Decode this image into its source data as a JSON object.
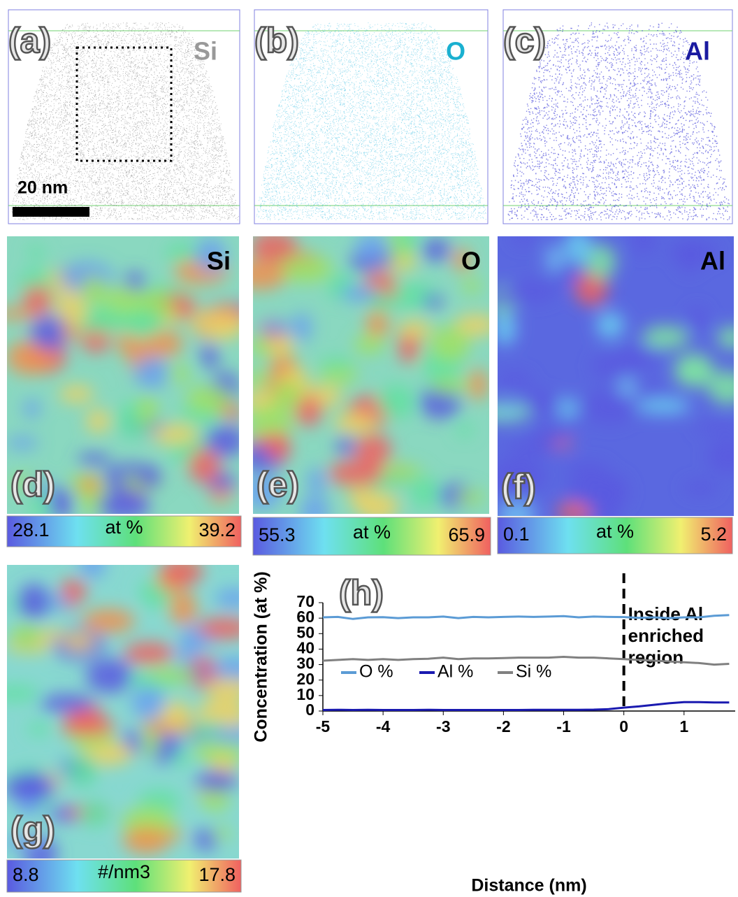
{
  "panels": {
    "a": {
      "label": "(a)",
      "element": "Si",
      "scale_bar": "20 nm"
    },
    "b": {
      "label": "(b)",
      "element": "O"
    },
    "c": {
      "label": "(c)",
      "element": "Al"
    },
    "d": {
      "label": "(d)",
      "element": "Si",
      "colorbar": {
        "min": 28.1,
        "unit": "at %",
        "max": 39.2
      }
    },
    "e": {
      "label": "(e)",
      "element": "O",
      "colorbar": {
        "min": 55.3,
        "unit": "at %",
        "max": 65.9
      }
    },
    "f": {
      "label": "(f)",
      "element": "Al",
      "colorbar": {
        "min": 0.1,
        "unit": "at %",
        "max": 5.2
      }
    },
    "g": {
      "label": "(g)",
      "colorbar": {
        "min": 8.8,
        "unit": "#/nm3",
        "max": 17.8
      }
    }
  },
  "chart_data": {
    "type": "line",
    "panel_label": "(h)",
    "x_label": "Distance (nm)",
    "y_label": "Concentration (at %)",
    "annotation": [
      "Inside Al",
      "enriched",
      "region"
    ],
    "x": [
      -5,
      -4.75,
      -4.5,
      -4.25,
      -4,
      -3.75,
      -3.5,
      -3.25,
      -3,
      -2.75,
      -2.5,
      -2.25,
      -2,
      -1.75,
      -1.5,
      -1.25,
      -1,
      -0.75,
      -0.5,
      -0.25,
      0,
      0.25,
      0.5,
      0.75,
      1,
      1.25,
      1.5,
      1.75
    ],
    "series": [
      {
        "name": "O %",
        "color": "#5b9bd5",
        "values": [
          60.5,
          60.8,
          59.5,
          60.5,
          60.6,
          60,
          60.5,
          60.5,
          61,
          60,
          60.8,
          60.5,
          60.8,
          61,
          60.8,
          61,
          61.3,
          60.5,
          61,
          60.8,
          60.7,
          60.2,
          60.5,
          60,
          60.5,
          60.5,
          61.5,
          62
        ]
      },
      {
        "name": "Al %",
        "color": "#1a1ab0",
        "values": [
          0.7,
          0.8,
          0.7,
          0.8,
          0.7,
          0.7,
          0.7,
          0.8,
          0.7,
          0.7,
          0.7,
          0.7,
          0.7,
          0.7,
          0.8,
          0.8,
          0.8,
          0.8,
          0.9,
          1.2,
          2.2,
          3,
          4,
          5,
          5.8,
          5.8,
          5.5,
          5.5
        ]
      },
      {
        "name": "Si %",
        "color": "#808080",
        "values": [
          32.5,
          33,
          33.5,
          33,
          33.5,
          33,
          33.5,
          33.8,
          34.5,
          33.5,
          34,
          34,
          34.2,
          34.5,
          34.5,
          34.5,
          35,
          34.5,
          34.5,
          34,
          33.5,
          33,
          32.5,
          32,
          31.5,
          31,
          30,
          30.5
        ]
      }
    ],
    "xlim": [
      -5,
      1.85
    ],
    "xticks": [
      -5,
      -4,
      -3,
      -2,
      -1,
      0,
      1
    ],
    "ylim": [
      0,
      70
    ],
    "yticks": [
      0,
      10,
      20,
      30,
      40,
      50,
      60,
      70
    ]
  }
}
